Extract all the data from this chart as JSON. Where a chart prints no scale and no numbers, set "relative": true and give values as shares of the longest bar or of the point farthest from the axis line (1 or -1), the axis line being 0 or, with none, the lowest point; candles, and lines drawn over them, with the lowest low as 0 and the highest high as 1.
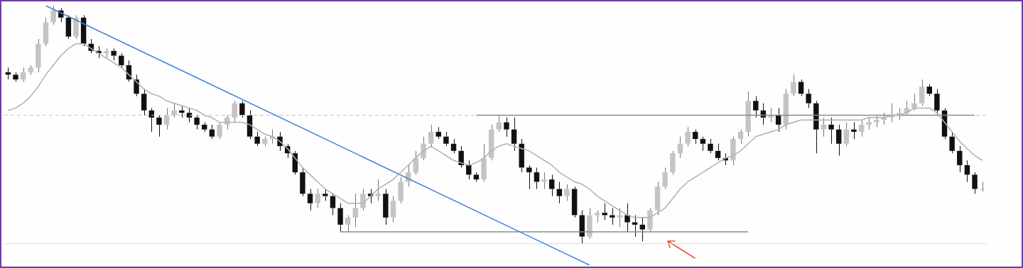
{
  "chart_data": [
    {
      "type": "candlestick",
      "relative": true,
      "legend": false,
      "categories": [
        null,
        null,
        null,
        null,
        null,
        null,
        null,
        null,
        null,
        null,
        null,
        null,
        null,
        null,
        null,
        null,
        null,
        null,
        null,
        null,
        null,
        null,
        null,
        null,
        null,
        null,
        null,
        null,
        null,
        null,
        null,
        null,
        null,
        null,
        null,
        null,
        null,
        null,
        null,
        null,
        null,
        null,
        null,
        null,
        null,
        null,
        null,
        null,
        null,
        null,
        null,
        null,
        null,
        null,
        null,
        null,
        null,
        null,
        null,
        null,
        null,
        null,
        null,
        null,
        null,
        null,
        null,
        null,
        null,
        null,
        null,
        null,
        null,
        null,
        null,
        null,
        null,
        null,
        null,
        null,
        null,
        null,
        null,
        null,
        null,
        null,
        null,
        null,
        null,
        null,
        null,
        null,
        null,
        null,
        null,
        null,
        null,
        null,
        null,
        null,
        null,
        null,
        null,
        null,
        null,
        null,
        null,
        null,
        null,
        null,
        null,
        null,
        null,
        null,
        null,
        null,
        null,
        null,
        null,
        null,
        null,
        null,
        null,
        null,
        null,
        null,
        null,
        null,
        null,
        null
      ],
      "ohlc": [
        [
          0.72,
          0.74,
          0.69,
          0.71
        ],
        [
          0.71,
          0.72,
          0.68,
          0.69
        ],
        [
          0.69,
          0.74,
          0.68,
          0.72
        ],
        [
          0.72,
          0.75,
          0.71,
          0.74
        ],
        [
          0.74,
          0.86,
          0.72,
          0.84
        ],
        [
          0.84,
          0.95,
          0.83,
          0.93
        ],
        [
          0.93,
          1,
          0.92,
          0.98
        ],
        [
          0.98,
          0.99,
          0.93,
          0.95
        ],
        [
          0.95,
          0.96,
          0.86,
          0.87
        ],
        [
          0.87,
          0.96,
          0.86,
          0.95
        ],
        [
          0.95,
          0.96,
          0.83,
          0.84
        ],
        [
          0.84,
          0.86,
          0.8,
          0.81
        ],
        [
          0.81,
          0.83,
          0.78,
          0.8
        ],
        [
          0.8,
          0.82,
          0.78,
          0.81
        ],
        [
          0.81,
          0.82,
          0.77,
          0.79
        ],
        [
          0.79,
          0.8,
          0.74,
          0.75
        ],
        [
          0.75,
          0.77,
          0.68,
          0.69
        ],
        [
          0.69,
          0.71,
          0.62,
          0.63
        ],
        [
          0.63,
          0.65,
          0.54,
          0.56
        ],
        [
          0.56,
          0.57,
          0.47,
          0.53
        ],
        [
          0.53,
          0.54,
          0.45,
          0.5
        ],
        [
          0.5,
          0.57,
          0.48,
          0.54
        ],
        [
          0.54,
          0.59,
          0.53,
          0.56
        ],
        [
          0.56,
          0.58,
          0.53,
          0.55
        ],
        [
          0.55,
          0.57,
          0.51,
          0.53
        ],
        [
          0.53,
          0.54,
          0.48,
          0.5
        ],
        [
          0.5,
          0.51,
          0.47,
          0.48
        ],
        [
          0.48,
          0.5,
          0.44,
          0.45
        ],
        [
          0.45,
          0.51,
          0.44,
          0.5
        ],
        [
          0.5,
          0.54,
          0.48,
          0.53
        ],
        [
          0.53,
          0.6,
          0.51,
          0.59
        ],
        [
          0.59,
          0.6,
          0.53,
          0.54
        ],
        [
          0.54,
          0.56,
          0.44,
          0.45
        ],
        [
          0.45,
          0.47,
          0.41,
          0.42
        ],
        [
          0.42,
          0.45,
          0.41,
          0.44
        ],
        [
          0.44,
          0.48,
          0.42,
          0.45
        ],
        [
          0.45,
          0.47,
          0.39,
          0.41
        ],
        [
          0.41,
          0.42,
          0.36,
          0.38
        ],
        [
          0.38,
          0.39,
          0.29,
          0.3
        ],
        [
          0.3,
          0.32,
          0.2,
          0.21
        ],
        [
          0.21,
          0.23,
          0.14,
          0.17
        ],
        [
          0.17,
          0.23,
          0.15,
          0.21
        ],
        [
          0.21,
          0.23,
          0.18,
          0.2
        ],
        [
          0.2,
          0.21,
          0.12,
          0.15
        ],
        [
          0.15,
          0.17,
          0.05,
          0.08
        ],
        [
          0.08,
          0.12,
          0.05,
          0.11
        ],
        [
          0.11,
          0.21,
          0.07,
          0.15
        ],
        [
          0.15,
          0.23,
          0.14,
          0.21
        ],
        [
          0.21,
          0.23,
          0.17,
          0.2
        ],
        [
          0.2,
          0.27,
          0.18,
          0.21
        ],
        [
          0.21,
          0.23,
          0.08,
          0.11
        ],
        [
          0.11,
          0.2,
          0.09,
          0.18
        ],
        [
          0.18,
          0.28,
          0.17,
          0.26
        ],
        [
          0.26,
          0.33,
          0.24,
          0.3
        ],
        [
          0.3,
          0.39,
          0.29,
          0.36
        ],
        [
          0.36,
          0.45,
          0.35,
          0.42
        ],
        [
          0.42,
          0.5,
          0.41,
          0.47
        ],
        [
          0.47,
          0.49,
          0.44,
          0.45
        ],
        [
          0.45,
          0.47,
          0.41,
          0.42
        ],
        [
          0.42,
          0.44,
          0.38,
          0.39
        ],
        [
          0.39,
          0.41,
          0.32,
          0.33
        ],
        [
          0.33,
          0.35,
          0.27,
          0.29
        ],
        [
          0.29,
          0.3,
          0.26,
          0.27
        ],
        [
          0.27,
          0.42,
          0.26,
          0.36
        ],
        [
          0.36,
          0.5,
          0.35,
          0.48
        ],
        [
          0.48,
          0.54,
          0.47,
          0.51
        ],
        [
          0.51,
          0.53,
          0.45,
          0.48
        ],
        [
          0.48,
          0.53,
          0.39,
          0.42
        ],
        [
          0.42,
          0.44,
          0.3,
          0.32
        ],
        [
          0.32,
          0.33,
          0.23,
          0.3
        ],
        [
          0.3,
          0.32,
          0.23,
          0.26
        ],
        [
          0.26,
          0.3,
          0.23,
          0.27
        ],
        [
          0.27,
          0.29,
          0.2,
          0.23
        ],
        [
          0.23,
          0.26,
          0.17,
          0.2
        ],
        [
          0.2,
          0.25,
          0.18,
          0.23
        ],
        [
          0.23,
          0.24,
          0.11,
          0.12
        ],
        [
          0.12,
          0.14,
          0,
          0.03
        ],
        [
          0.03,
          0.15,
          0.02,
          0.12
        ],
        [
          0.12,
          0.14,
          0.09,
          0.13
        ],
        [
          0.13,
          0.17,
          0.1,
          0.12
        ],
        [
          0.12,
          0.15,
          0.08,
          0.11
        ],
        [
          0.11,
          0.15,
          0.07,
          0.12
        ],
        [
          0.12,
          0.17,
          0.05,
          0.09
        ],
        [
          0.09,
          0.12,
          0.03,
          0.08
        ],
        [
          0.08,
          0.11,
          0.01,
          0.06
        ],
        [
          0.06,
          0.15,
          0.05,
          0.14
        ],
        [
          0.14,
          0.26,
          0.12,
          0.24
        ],
        [
          0.24,
          0.32,
          0.23,
          0.3
        ],
        [
          0.3,
          0.39,
          0.29,
          0.38
        ],
        [
          0.38,
          0.45,
          0.36,
          0.42
        ],
        [
          0.42,
          0.49,
          0.41,
          0.47
        ],
        [
          0.47,
          0.48,
          0.42,
          0.44
        ],
        [
          0.44,
          0.45,
          0.39,
          0.42
        ],
        [
          0.42,
          0.44,
          0.38,
          0.39
        ],
        [
          0.39,
          0.42,
          0.35,
          0.36
        ],
        [
          0.36,
          0.38,
          0.33,
          0.35
        ],
        [
          0.35,
          0.45,
          0.33,
          0.44
        ],
        [
          0.44,
          0.48,
          0.42,
          0.47
        ],
        [
          0.47,
          0.64,
          0.45,
          0.6
        ],
        [
          0.6,
          0.62,
          0.53,
          0.56
        ],
        [
          0.56,
          0.59,
          0.5,
          0.53
        ],
        [
          0.53,
          0.57,
          0.51,
          0.54
        ],
        [
          0.54,
          0.57,
          0.47,
          0.5
        ],
        [
          0.5,
          0.65,
          0.48,
          0.63
        ],
        [
          0.63,
          0.71,
          0.62,
          0.68
        ],
        [
          0.68,
          0.69,
          0.62,
          0.63
        ],
        [
          0.63,
          0.65,
          0.57,
          0.59
        ],
        [
          0.59,
          0.6,
          0.38,
          0.48
        ],
        [
          0.48,
          0.53,
          0.45,
          0.5
        ],
        [
          0.5,
          0.53,
          0.42,
          0.48
        ],
        [
          0.48,
          0.5,
          0.37,
          0.42
        ],
        [
          0.42,
          0.51,
          0.41,
          0.48
        ],
        [
          0.48,
          0.51,
          0.44,
          0.47
        ],
        [
          0.47,
          0.52,
          0.45,
          0.5
        ],
        [
          0.5,
          0.53,
          0.48,
          0.51
        ],
        [
          0.51,
          0.54,
          0.49,
          0.52
        ],
        [
          0.52,
          0.55,
          0.5,
          0.53
        ],
        [
          0.53,
          0.59,
          0.51,
          0.54
        ],
        [
          0.54,
          0.57,
          0.52,
          0.55
        ],
        [
          0.55,
          0.6,
          0.54,
          0.57
        ],
        [
          0.57,
          0.63,
          0.56,
          0.59
        ],
        [
          0.59,
          0.69,
          0.58,
          0.66
        ],
        [
          0.66,
          0.67,
          0.62,
          0.63
        ],
        [
          0.63,
          0.65,
          0.54,
          0.56
        ],
        [
          0.56,
          0.57,
          0.44,
          0.45
        ],
        [
          0.45,
          0.47,
          0.38,
          0.39
        ],
        [
          0.39,
          0.41,
          0.3,
          0.33
        ],
        [
          0.33,
          0.35,
          0.26,
          0.29
        ],
        [
          0.29,
          0.3,
          0.21,
          0.23
        ],
        [
          0.23,
          0.26,
          0.22,
          0.23
        ]
      ]
    },
    {
      "type": "line",
      "relative": true,
      "legend": false,
      "categories": [
        null,
        null,
        null,
        null,
        null,
        null,
        null,
        null,
        null,
        null,
        null,
        null,
        null,
        null,
        null,
        null,
        null,
        null,
        null,
        null,
        null,
        null,
        null,
        null,
        null,
        null,
        null,
        null,
        null,
        null,
        null,
        null,
        null,
        null,
        null,
        null,
        null,
        null,
        null,
        null,
        null,
        null,
        null,
        null,
        null,
        null,
        null,
        null,
        null,
        null,
        null,
        null,
        null,
        null,
        null,
        null,
        null,
        null,
        null,
        null,
        null,
        null,
        null,
        null,
        null,
        null,
        null,
        null,
        null,
        null,
        null,
        null,
        null,
        null,
        null,
        null,
        null,
        null,
        null,
        null,
        null,
        null,
        null,
        null,
        null,
        null,
        null,
        null,
        null,
        null,
        null,
        null,
        null,
        null,
        null,
        null,
        null,
        null,
        null,
        null,
        null,
        null,
        null,
        null,
        null,
        null,
        null,
        null,
        null,
        null,
        null,
        null,
        null,
        null,
        null,
        null,
        null,
        null,
        null,
        null,
        null,
        null,
        null,
        null,
        null,
        null,
        null,
        null,
        null,
        null
      ],
      "series": [
        {
          "color": "#b0b0b0",
          "values": [
            0.56,
            0.57,
            0.59,
            0.62,
            0.66,
            0.71,
            0.75,
            0.79,
            0.82,
            0.84,
            0.84,
            0.82,
            0.8,
            0.78,
            0.76,
            0.74,
            0.71,
            0.68,
            0.65,
            0.63,
            0.62,
            0.6,
            0.59,
            0.58,
            0.57,
            0.56,
            0.54,
            0.53,
            0.51,
            0.51,
            0.51,
            0.51,
            0.5,
            0.48,
            0.46,
            0.45,
            0.43,
            0.4,
            0.36,
            0.32,
            0.29,
            0.26,
            0.23,
            0.21,
            0.19,
            0.17,
            0.17,
            0.17,
            0.2,
            0.23,
            0.25,
            0.27,
            0.3,
            0.33,
            0.36,
            0.39,
            0.41,
            0.39,
            0.37,
            0.35,
            0.34,
            0.33,
            0.34,
            0.36,
            0.39,
            0.41,
            0.42,
            0.41,
            0.4,
            0.39,
            0.37,
            0.35,
            0.33,
            0.3,
            0.28,
            0.26,
            0.25,
            0.23,
            0.2,
            0.18,
            0.16,
            0.14,
            0.12,
            0.11,
            0.11,
            0.11,
            0.13,
            0.15,
            0.19,
            0.23,
            0.26,
            0.28,
            0.3,
            0.32,
            0.34,
            0.36,
            0.37,
            0.39,
            0.42,
            0.45,
            0.46,
            0.47,
            0.48,
            0.5,
            0.51,
            0.52,
            0.52,
            0.52,
            0.52,
            0.52,
            0.52,
            0.52,
            0.52,
            0.52,
            0.53,
            0.53,
            0.53,
            0.54,
            0.54,
            0.55,
            0.57,
            0.57,
            0.57,
            0.55,
            0.51,
            0.47,
            0.43,
            0.4,
            0.37,
            0.35
          ]
        },
        {
          "color": "#3f7fd9",
          "values": [
            null,
            null,
            null,
            null,
            null,
            1,
            null,
            null,
            null,
            null,
            null,
            null,
            null,
            null,
            null,
            null,
            null,
            null,
            null,
            null,
            null,
            null,
            null,
            null,
            null,
            null,
            null,
            null,
            null,
            null,
            null,
            null,
            null,
            null,
            null,
            null,
            null,
            null,
            null,
            null,
            null,
            null,
            null,
            null,
            null,
            null,
            null,
            null,
            null,
            null,
            null,
            null,
            null,
            null,
            null,
            null,
            null,
            null,
            null,
            null,
            null,
            null,
            null,
            null,
            null,
            null,
            null,
            null,
            null,
            null,
            null,
            null,
            null,
            null,
            null,
            null,
            null,
            -0.09,
            null,
            null,
            null,
            null,
            null,
            null,
            null,
            null,
            null,
            null,
            null,
            null,
            null,
            null,
            null,
            null,
            null,
            null,
            null,
            null,
            null,
            null,
            null,
            null,
            null,
            null,
            null,
            null,
            null,
            null,
            null,
            null,
            null,
            null,
            null,
            null,
            null,
            null,
            null,
            null,
            null,
            null,
            null,
            null,
            null,
            null,
            null,
            null,
            null,
            null,
            null,
            null
          ]
        },
        {
          "color": "#8a8a8a",
          "values": [
            null,
            null,
            null,
            null,
            null,
            null,
            null,
            null,
            null,
            null,
            null,
            null,
            null,
            null,
            null,
            null,
            null,
            null,
            null,
            null,
            null,
            null,
            null,
            null,
            null,
            null,
            null,
            null,
            null,
            null,
            null,
            null,
            null,
            null,
            null,
            null,
            null,
            null,
            null,
            null,
            null,
            null,
            null,
            null,
            0.05,
            null,
            null,
            null,
            null,
            null,
            null,
            null,
            null,
            null,
            null,
            null,
            null,
            null,
            null,
            null,
            null,
            null,
            null,
            null,
            null,
            null,
            null,
            null,
            null,
            null,
            null,
            null,
            null,
            null,
            null,
            null,
            null,
            null,
            null,
            null,
            null,
            null,
            null,
            null,
            null,
            null,
            null,
            null,
            null,
            null,
            null,
            null,
            null,
            null,
            null,
            null,
            null,
            null,
            0.05,
            null,
            null,
            null,
            null,
            null,
            null,
            null,
            null,
            null,
            null,
            null,
            null,
            null,
            null,
            null,
            null,
            null,
            null,
            null,
            null,
            null,
            null,
            null,
            null,
            null,
            null,
            null,
            null,
            null,
            null,
            null
          ]
        },
        {
          "color": "#8a8a8a",
          "values": [
            null,
            null,
            null,
            null,
            null,
            null,
            null,
            null,
            null,
            null,
            null,
            null,
            null,
            null,
            null,
            null,
            null,
            null,
            null,
            null,
            null,
            null,
            null,
            null,
            null,
            null,
            null,
            null,
            null,
            null,
            null,
            null,
            null,
            null,
            null,
            null,
            null,
            null,
            null,
            null,
            null,
            null,
            null,
            null,
            null,
            null,
            null,
            null,
            null,
            null,
            null,
            null,
            null,
            null,
            null,
            null,
            null,
            null,
            null,
            null,
            null,
            null,
            0.54,
            null,
            null,
            null,
            null,
            null,
            null,
            null,
            null,
            null,
            null,
            null,
            null,
            null,
            null,
            null,
            null,
            null,
            null,
            null,
            null,
            null,
            null,
            null,
            null,
            null,
            null,
            null,
            null,
            null,
            null,
            null,
            null,
            null,
            null,
            null,
            null,
            null,
            null,
            null,
            null,
            null,
            null,
            null,
            null,
            null,
            null,
            null,
            null,
            null,
            null,
            null,
            null,
            null,
            null,
            null,
            null,
            null,
            null,
            null,
            null,
            null,
            null,
            null,
            null,
            null,
            0.54,
            null
          ]
        }
      ],
      "ref_lines": [
        {
          "axis": "y",
          "value": 0.54,
          "color": "#c8c8c8",
          "line_style": "dashed"
        },
        {
          "axis": "y",
          "value": 0,
          "color": "#dddddd"
        }
      ]
    }
  ]
}
